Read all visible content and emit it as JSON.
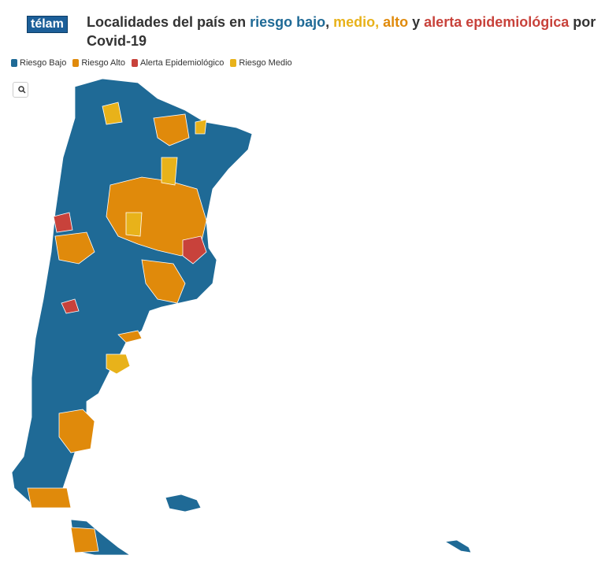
{
  "header": {
    "logo": "télam",
    "title_parts": [
      {
        "text": "Localidades del país en ",
        "color": "#333333"
      },
      {
        "text": "riesgo bajo",
        "color": "#1f6a96"
      },
      {
        "text": ", ",
        "color": "#333333"
      },
      {
        "text": "medio,",
        "color": "#e8b21a"
      },
      {
        "text": " alto",
        "color": "#e08a0b"
      },
      {
        "text": " y ",
        "color": "#333333"
      },
      {
        "text": "alerta epidemiológica",
        "color": "#c8423b"
      },
      {
        "text": " por Covid-19",
        "color": "#333333"
      }
    ]
  },
  "legend": [
    {
      "name": "Riesgo Bajo",
      "color": "#1f6a96"
    },
    {
      "name": "Riesgo Alto",
      "color": "#e08a0b"
    },
    {
      "name": "Alerta Epidemiológico",
      "color": "#c8423b"
    },
    {
      "name": "Riesgo Medio",
      "color": "#e8b21a"
    }
  ]
}
